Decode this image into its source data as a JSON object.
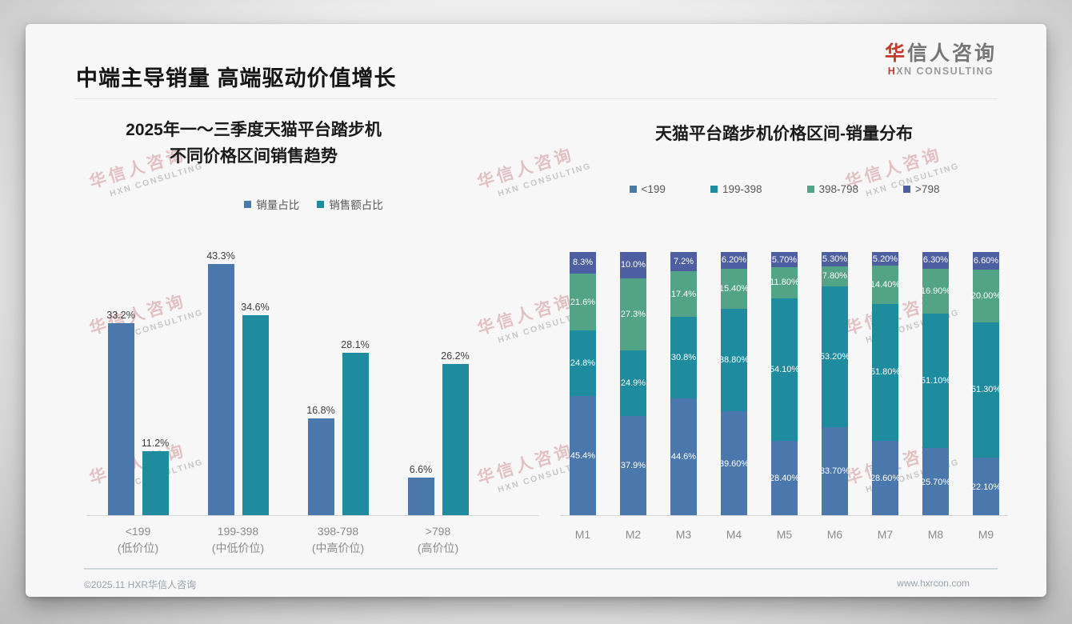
{
  "header": {
    "title": "中端主导销量 高端驱动价值增长"
  },
  "logo": {
    "zh_first": "华",
    "zh_rest": "信人咨询",
    "en_first": "H",
    "en_rest": "XN CONSULTING"
  },
  "watermark": {
    "line1": "华信人咨询",
    "line2": "HXN CONSULTING"
  },
  "footer": {
    "left": "©2025.11 HXR华信人咨询",
    "right": "www.hxrcon.com"
  },
  "colors": {
    "blue": "#4A78AD",
    "teal": "#1E8C9E",
    "green": "#53A486",
    "indigo": "#4D5FA1"
  },
  "chart_data": [
    {
      "type": "bar",
      "title_lines": [
        "2025年一～三季度天猫平台踏步机",
        "不同价格区间销售趋势"
      ],
      "categories": [
        "<199",
        "199-398",
        "398-798",
        ">798"
      ],
      "category_sublabels": [
        "(低价位)",
        "(中低价位)",
        "(中高价位)",
        "(高价位)"
      ],
      "series": [
        {
          "name": "销量占比",
          "color_key": "blue",
          "values": [
            33.2,
            43.3,
            16.8,
            6.6
          ],
          "labels": [
            "33.2%",
            "43.3%",
            "16.8%",
            "6.6%"
          ]
        },
        {
          "name": "销售额占比",
          "color_key": "teal",
          "values": [
            11.2,
            34.6,
            28.1,
            26.2
          ],
          "labels": [
            "11.2%",
            "34.6%",
            "28.1%",
            "26.2%"
          ]
        }
      ],
      "xlabel": "",
      "ylabel": "",
      "ylim": [
        0,
        45
      ],
      "grid": false,
      "legend_position": "top"
    },
    {
      "type": "stacked-bar",
      "title": "天猫平台踏步机价格区间-销量分布",
      "categories": [
        "M1",
        "M2",
        "M3",
        "M4",
        "M5",
        "M6",
        "M7",
        "M8",
        "M9"
      ],
      "series": [
        {
          "name": "<199",
          "color_key": "blue",
          "values": [
            45.4,
            37.9,
            44.6,
            39.6,
            28.4,
            33.7,
            28.6,
            25.7,
            22.1
          ],
          "labels": [
            "45.4%",
            "37.9%",
            "44.6%",
            "39.60%",
            "28.40%",
            "33.70%",
            "28.60%",
            "25.70%",
            "22.10%"
          ]
        },
        {
          "name": "199-398",
          "color_key": "teal",
          "values": [
            24.8,
            24.9,
            30.8,
            38.8,
            54.1,
            53.2,
            51.8,
            51.1,
            51.3
          ],
          "labels": [
            "24.8%",
            "24.9%",
            "30.8%",
            "38.80%",
            "54.10%",
            "53.20%",
            "51.80%",
            "51.10%",
            "51.30%"
          ]
        },
        {
          "name": "398-798",
          "color_key": "green",
          "values": [
            21.6,
            27.3,
            17.4,
            15.4,
            11.8,
            7.8,
            14.4,
            16.9,
            20.0
          ],
          "labels": [
            "21.6%",
            "27.3%",
            "17.4%",
            "15.40%",
            "11.80%",
            "7.80%",
            "14.40%",
            "16.90%",
            "20.00%"
          ]
        },
        {
          "name": ">798",
          "color_key": "indigo",
          "values": [
            8.3,
            10.0,
            7.2,
            6.2,
            5.7,
            5.3,
            5.2,
            6.3,
            6.6
          ],
          "labels": [
            "8.3%",
            "10.0%",
            "7.2%",
            "6.20%",
            "5.70%",
            "5.30%",
            "5.20%",
            "6.30%",
            "6.60%"
          ]
        }
      ],
      "xlabel": "",
      "ylabel": "",
      "ylim": [
        0,
        100
      ],
      "grid": false,
      "legend_position": "top"
    }
  ]
}
